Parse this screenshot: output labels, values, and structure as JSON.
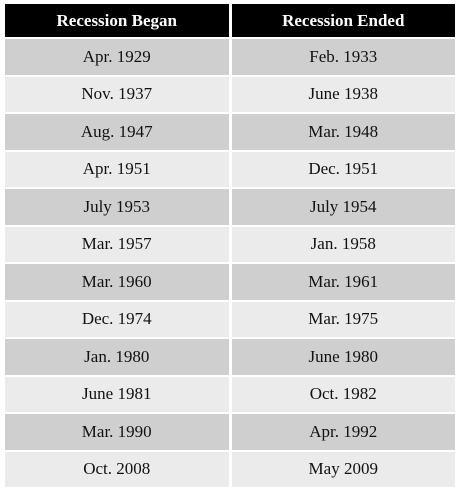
{
  "table": {
    "headers": [
      "Recession Began",
      "Recession Ended"
    ],
    "rows": [
      [
        "Apr. 1929",
        "Feb. 1933"
      ],
      [
        "Nov. 1937",
        "June 1938"
      ],
      [
        "Aug. 1947",
        "Mar. 1948"
      ],
      [
        "Apr. 1951",
        "Dec. 1951"
      ],
      [
        "July 1953",
        "July 1954"
      ],
      [
        "Mar. 1957",
        "Jan. 1958"
      ],
      [
        "Mar. 1960",
        "Mar. 1961"
      ],
      [
        "Dec. 1974",
        "Mar. 1975"
      ],
      [
        "Jan. 1980",
        "June 1980"
      ],
      [
        "June 1981",
        "Oct. 1982"
      ],
      [
        "Mar. 1990",
        "Apr. 1992"
      ],
      [
        "Oct. 2008",
        "May 2009"
      ]
    ]
  },
  "colors": {
    "header_bg": "#000000",
    "header_text": "#ffffff",
    "row_dark": "#cfcfcf",
    "row_light": "#ebebeb"
  }
}
